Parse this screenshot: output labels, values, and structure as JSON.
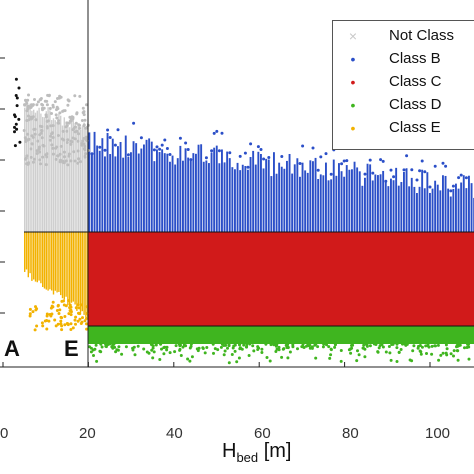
{
  "chart_data": {
    "type": "scatter",
    "xlabel_main": "H",
    "xlabel_sub": "bed",
    "xlabel_unit": " [m]",
    "xlim": [
      0,
      110
    ],
    "x_ticks": [
      "0",
      "20",
      "40",
      "60",
      "80",
      "100"
    ],
    "region_boundary_x": 20,
    "region_labels": [
      "A",
      "E"
    ],
    "legend": {
      "position": "top-right",
      "entries": [
        {
          "label": "Not Class",
          "marker": "×",
          "color": "#c8c8c8"
        },
        {
          "label": "Class B",
          "marker": "•",
          "color": "#2b4fc8"
        },
        {
          "label": "Class C",
          "marker": "•",
          "color": "#d11a1a"
        },
        {
          "label": "Class D",
          "marker": "•",
          "color": "#3fb51f"
        },
        {
          "label": "Class E",
          "marker": "•",
          "color": "#f2b200"
        }
      ]
    },
    "colors": {
      "not_class": "#cfcfcf",
      "class_b": "#2b4fc8",
      "class_c": "#d11a1a",
      "class_d": "#3fb51f",
      "class_e": "#f2b200"
    }
  }
}
